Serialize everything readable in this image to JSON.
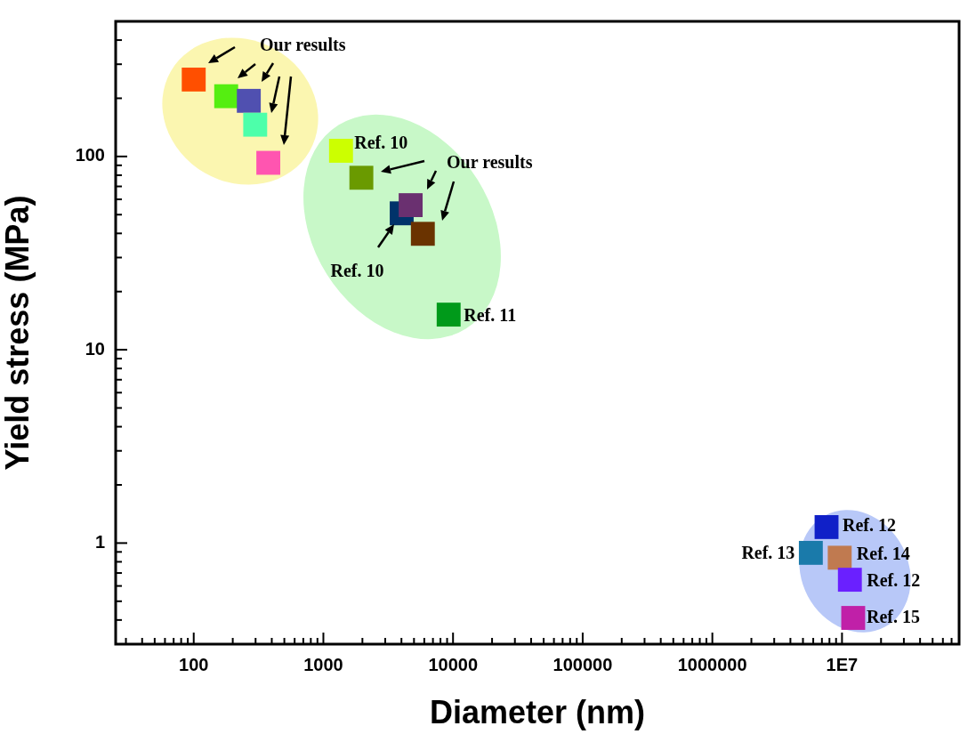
{
  "chart_data": {
    "type": "scatter",
    "xlabel": "Diameter (nm)",
    "ylabel": "Yield stress (MPa)",
    "log": "xy",
    "marker": "square",
    "x": [
      100,
      178,
      266,
      298,
      376,
      1368,
      1963,
      4018,
      4710,
      5850,
      9250,
      7600000,
      5750000,
      9600000,
      11500000,
      12200000
    ],
    "values": [
      250,
      205,
      194,
      146,
      92.7,
      107,
      77.6,
      50.8,
      56,
      39.8,
      15.2,
      1.21,
      0.89,
      0.84,
      0.646,
      0.41
    ],
    "colors": [
      "#ff4f00",
      "#55ee11",
      "#5050b0",
      "#4dffaa",
      "#ff55b0",
      "#ccff00",
      "#6a9a00",
      "#00336a",
      "#6a3070",
      "#6a3300",
      "#009a1a",
      "#1020c8",
      "#1a7aaa",
      "#c07a50",
      "#6a20ff",
      "#c020a8"
    ],
    "xlim": [
      25,
      80000000
    ],
    "ylim": [
      0.3,
      500
    ],
    "xticks": [
      {
        "value": 30,
        "label": null
      },
      {
        "value": 40,
        "label": null
      },
      {
        "value": 50,
        "label": null
      },
      {
        "value": 60,
        "label": null
      },
      {
        "value": 70,
        "label": null
      },
      {
        "value": 80,
        "label": null
      },
      {
        "value": 90,
        "label": null
      },
      100,
      {
        "value": 200,
        "label": null
      },
      {
        "value": 300,
        "label": null
      },
      {
        "value": 400,
        "label": null
      },
      {
        "value": 500,
        "label": null
      },
      {
        "value": 600,
        "label": null
      },
      {
        "value": 700,
        "label": null
      },
      {
        "value": 800,
        "label": null
      },
      {
        "value": 900,
        "label": null
      },
      1000,
      {
        "value": 2000,
        "label": null
      },
      {
        "value": 3000,
        "label": null
      },
      {
        "value": 4000,
        "label": null
      },
      {
        "value": 5000,
        "label": null
      },
      {
        "value": 6000,
        "label": null
      },
      {
        "value": 7000,
        "label": null
      },
      {
        "value": 8000,
        "label": null
      },
      {
        "value": 9000,
        "label": null
      },
      10000,
      {
        "value": 20000,
        "label": null
      },
      {
        "value": 30000,
        "label": null
      },
      {
        "value": 40000,
        "label": null
      },
      {
        "value": 50000,
        "label": null
      },
      {
        "value": 60000,
        "label": null
      },
      {
        "value": 70000,
        "label": null
      },
      {
        "value": 80000,
        "label": null
      },
      {
        "value": 90000,
        "label": null
      },
      100000,
      {
        "value": 200000,
        "label": null
      },
      {
        "value": 300000,
        "label": null
      },
      {
        "value": 400000,
        "label": null
      },
      {
        "value": 500000,
        "label": null
      },
      {
        "value": 600000,
        "label": null
      },
      {
        "value": 700000,
        "label": null
      },
      {
        "value": 800000,
        "label": null
      },
      {
        "value": 900000,
        "label": null
      },
      1000000,
      {
        "value": 2000000,
        "label": null
      },
      {
        "value": 3000000,
        "label": null
      },
      {
        "value": 4000000,
        "label": null
      },
      {
        "value": 5000000,
        "label": null
      },
      {
        "value": 6000000,
        "label": null
      },
      {
        "value": 7000000,
        "label": null
      },
      {
        "value": 8000000,
        "label": null
      },
      {
        "value": 9000000,
        "label": null
      },
      {
        "value": 10000000,
        "label": "1E7"
      },
      {
        "value": 20000000,
        "label": null
      },
      {
        "value": 30000000,
        "label": null
      },
      {
        "value": 40000000,
        "label": null
      },
      {
        "value": 50000000,
        "label": null
      },
      {
        "value": 60000000,
        "label": null
      },
      {
        "value": 70000000,
        "label": null
      }
    ],
    "yticks": [
      {
        "value": 0.3,
        "label": null
      },
      {
        "value": 0.4,
        "label": null
      },
      {
        "value": 0.5,
        "label": null
      },
      {
        "value": 0.6,
        "label": null
      },
      {
        "value": 0.7,
        "label": null
      },
      {
        "value": 0.8,
        "label": null
      },
      {
        "value": 0.9,
        "label": null
      },
      1,
      {
        "value": 2,
        "label": null
      },
      {
        "value": 3,
        "label": null
      },
      {
        "value": 4,
        "label": null
      },
      {
        "value": 5,
        "label": null
      },
      {
        "value": 6,
        "label": null
      },
      {
        "value": 7,
        "label": null
      },
      {
        "value": 8,
        "label": null
      },
      {
        "value": 9,
        "label": null
      },
      10,
      {
        "value": 20,
        "label": null
      },
      {
        "value": 30,
        "label": null
      },
      {
        "value": 40,
        "label": null
      },
      {
        "value": 50,
        "label": null
      },
      {
        "value": 60,
        "label": null
      },
      {
        "value": 70,
        "label": null
      },
      {
        "value": 80,
        "label": null
      },
      {
        "value": 90,
        "label": null
      },
      100,
      {
        "value": 200,
        "label": null
      },
      {
        "value": 300,
        "label": null
      },
      {
        "value": 400,
        "label": null
      }
    ],
    "annotations": [
      "Our results",
      {
        "text": "Ref. 10",
        "x": 1368,
        "y": 107
      },
      "Our results",
      {
        "text": "Ref. 10",
        "x": 4018,
        "y": 50.8
      },
      {
        "text": "Ref. 11",
        "x": 9250,
        "y": 15.2
      },
      {
        "text": "Ref. 12",
        "x": 7600000,
        "y": 1.21
      },
      {
        "text": "Ref. 13",
        "x": 5750000,
        "y": 0.89
      },
      {
        "text": "Ref. 14",
        "x": 9600000,
        "y": 0.84
      },
      {
        "text": "Ref. 12",
        "x": 11500000,
        "y": 0.646
      },
      {
        "text": "Ref. 15",
        "x": 12200000,
        "y": 0.41
      }
    ]
  }
}
